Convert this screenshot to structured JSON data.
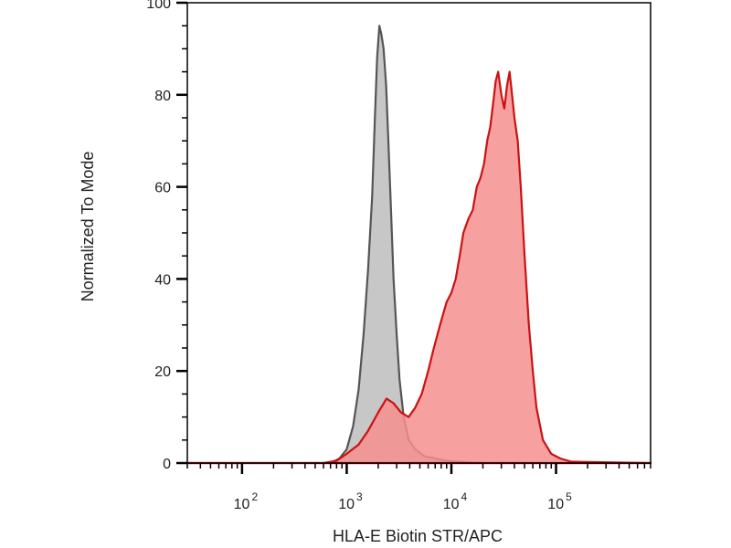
{
  "chart_data": {
    "type": "area",
    "title": "",
    "xlabel": "HLA-E Biotin STR/APC",
    "ylabel": "Normalized To Mode",
    "x_scale": "log",
    "xlim": [
      30,
      800000
    ],
    "ylim": [
      0,
      100
    ],
    "grid": false,
    "legend": "none",
    "y_ticks": [
      "0",
      "20",
      "40",
      "60",
      "80",
      "100"
    ],
    "x_ticks": [
      {
        "value": 100,
        "base": "10",
        "exp": "2"
      },
      {
        "value": 1000,
        "base": "10",
        "exp": "3"
      },
      {
        "value": 10000,
        "base": "10",
        "exp": "4"
      },
      {
        "value": 100000,
        "base": "10",
        "exp": "5"
      }
    ],
    "series": [
      {
        "color": "#555555",
        "fill": "#bdbdbd",
        "x": [
          30,
          700,
          850,
          1000,
          1150,
          1300,
          1450,
          1600,
          1750,
          1850,
          1950,
          2050,
          2150,
          2250,
          2380,
          2500,
          2650,
          2800,
          3000,
          3200,
          3500,
          3900,
          4500,
          5500,
          7000,
          9000,
          12000,
          16000,
          20000,
          800000
        ],
        "y": [
          0,
          0,
          1,
          3,
          8,
          16,
          28,
          42,
          58,
          74,
          88,
          95,
          93,
          90,
          82,
          70,
          55,
          40,
          28,
          18,
          10,
          5,
          3,
          1.5,
          1,
          0.5,
          0.3,
          0.1,
          0,
          0
        ]
      },
      {
        "color": "#cc1111",
        "fill": "#f48f8f",
        "x": [
          30,
          600,
          800,
          1000,
          1300,
          1600,
          2000,
          2400,
          2800,
          3300,
          3900,
          4500,
          5200,
          6000,
          6800,
          7800,
          9000,
          10000,
          11000,
          12000,
          13000,
          14500,
          16000,
          17500,
          19000,
          20500,
          22000,
          23500,
          25000,
          26500,
          28000,
          30000,
          32000,
          34000,
          36000,
          38000,
          40000,
          43000,
          46000,
          50000,
          55000,
          60000,
          65000,
          75000,
          90000,
          110000,
          140000,
          800000
        ],
        "y": [
          0,
          0,
          0.5,
          2,
          4,
          7,
          11,
          14,
          13,
          11,
          10,
          12,
          15,
          20,
          25,
          30,
          35,
          37,
          40,
          45,
          50,
          53,
          55,
          60,
          62,
          65,
          70,
          73,
          78,
          83,
          85,
          80,
          77,
          82,
          85,
          80,
          75,
          70,
          60,
          45,
          30,
          20,
          12,
          5,
          2,
          1,
          0.3,
          0
        ]
      }
    ]
  }
}
